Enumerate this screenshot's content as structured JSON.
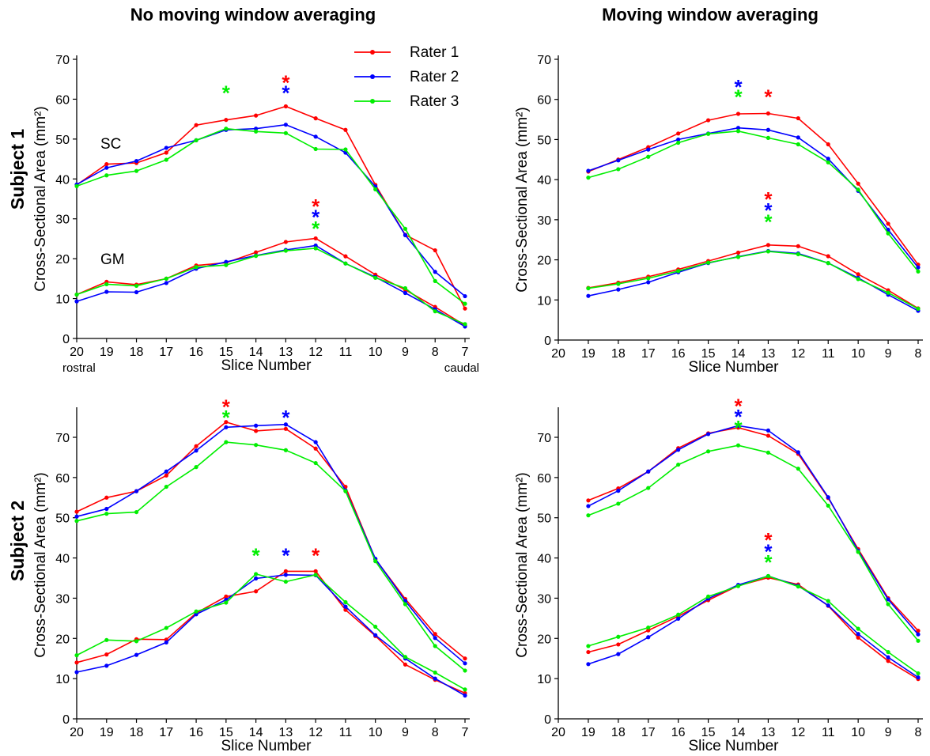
{
  "column_titles": [
    "No moving window averaging",
    "Moving window averaging"
  ],
  "row_titles": [
    "Subject 1",
    "Subject 2"
  ],
  "colors": {
    "Rater 1": "#ff0000",
    "Rater 2": "#0000ff",
    "Rater 3": "#00ee00"
  },
  "legend": [
    "Rater 1",
    "Rater 2",
    "Rater 3"
  ],
  "chart_data": [
    {
      "type": "line",
      "panel": "subject1-no-averaging",
      "xlabel": "Slice Number",
      "ylabel": "Cross-Sectional Area (mm²)",
      "xticks": [
        20,
        19,
        18,
        17,
        16,
        15,
        14,
        13,
        12,
        11,
        10,
        9,
        8,
        7
      ],
      "xlim": [
        20,
        7
      ],
      "ylim": [
        0,
        70
      ],
      "yticks": [
        0,
        10,
        20,
        30,
        40,
        50,
        60,
        70
      ],
      "xtick_notes": {
        "left": "rostral",
        "right": "caudal"
      },
      "legend_position": "top-center",
      "x": [
        20,
        19,
        18,
        17,
        16,
        15,
        14,
        13,
        12,
        11,
        10,
        9,
        8,
        7
      ],
      "groups": [
        {
          "label": "SC",
          "series": [
            {
              "name": "Rater 1",
              "values": [
                38.5,
                43.7,
                44.0,
                46.6,
                53.5,
                54.8,
                55.9,
                58.2,
                55.2,
                52.3,
                38.5,
                26.0,
                22.1,
                7.5
              ]
            },
            {
              "name": "Rater 2",
              "values": [
                38.6,
                42.8,
                44.5,
                47.8,
                49.7,
                52.3,
                52.6,
                53.6,
                50.6,
                46.6,
                38.1,
                25.9,
                16.7,
                10.6
              ]
            },
            {
              "name": "Rater 3",
              "values": [
                38.2,
                40.9,
                42.0,
                44.8,
                49.7,
                52.6,
                51.9,
                51.5,
                47.5,
                47.4,
                37.4,
                27.5,
                14.4,
                8.7
              ]
            }
          ]
        },
        {
          "label": "GM",
          "series": [
            {
              "name": "Rater 1",
              "values": [
                11.0,
                14.2,
                13.5,
                15.0,
                18.3,
                19.0,
                21.6,
                24.2,
                25.1,
                20.6,
                16.0,
                12.2,
                7.9,
                3.3
              ]
            },
            {
              "name": "Rater 2",
              "values": [
                9.3,
                11.7,
                11.6,
                13.9,
                17.5,
                19.2,
                20.8,
                22.2,
                23.3,
                18.8,
                15.4,
                11.4,
                7.3,
                3.0
              ]
            },
            {
              "name": "Rater 3",
              "values": [
                11.0,
                13.6,
                13.2,
                15.0,
                17.9,
                18.4,
                20.7,
                22.0,
                22.6,
                18.8,
                15.2,
                12.6,
                6.8,
                3.6
              ]
            }
          ]
        }
      ],
      "annotations": [
        {
          "text": "*",
          "x": 13,
          "y": 64.5,
          "color": "Rater 1"
        },
        {
          "text": "*",
          "x": 13,
          "y": 62.0,
          "color": "Rater 2"
        },
        {
          "text": "*",
          "x": 15,
          "y": 62.0,
          "color": "Rater 3"
        },
        {
          "text": "*",
          "x": 12,
          "y": 33.5,
          "color": "Rater 1"
        },
        {
          "text": "*",
          "x": 12,
          "y": 30.8,
          "color": "Rater 2"
        },
        {
          "text": "*",
          "x": 12,
          "y": 28.0,
          "color": "Rater 3"
        }
      ]
    },
    {
      "type": "line",
      "panel": "subject1-moving-averaging",
      "xlabel": "Slice Number",
      "ylabel": "Cross-Sectional Area (mm²)",
      "xticks": [
        20,
        19,
        18,
        17,
        16,
        15,
        14,
        13,
        12,
        11,
        10,
        9,
        8
      ],
      "xlim": [
        20,
        8
      ],
      "ylim": [
        0,
        70
      ],
      "yticks": [
        0,
        10,
        20,
        30,
        40,
        50,
        60,
        70
      ],
      "x": [
        19,
        18,
        17,
        16,
        15,
        14,
        13,
        12,
        11,
        10,
        9,
        8
      ],
      "groups": [
        {
          "label": "",
          "series": [
            {
              "name": "Rater 1",
              "values": [
                42.0,
                45.0,
                48.1,
                51.5,
                54.8,
                56.4,
                56.5,
                55.3,
                48.8,
                39.0,
                29.0,
                18.8
              ]
            },
            {
              "name": "Rater 2",
              "values": [
                42.2,
                44.8,
                47.5,
                50.0,
                51.5,
                52.9,
                52.4,
                50.5,
                45.2,
                37.2,
                27.5,
                18.1
              ]
            },
            {
              "name": "Rater 3",
              "values": [
                40.5,
                42.6,
                45.7,
                49.2,
                51.4,
                52.1,
                50.4,
                48.8,
                44.3,
                37.5,
                26.6,
                17.1
              ]
            }
          ]
        },
        {
          "label": "",
          "series": [
            {
              "name": "Rater 1",
              "values": [
                13.0,
                14.3,
                15.8,
                17.6,
                19.7,
                21.8,
                23.7,
                23.4,
                20.9,
                16.4,
                12.4,
                7.9
              ]
            },
            {
              "name": "Rater 2",
              "values": [
                11.0,
                12.6,
                14.4,
                16.9,
                19.2,
                20.8,
                22.2,
                21.6,
                19.2,
                15.5,
                11.3,
                7.3
              ]
            },
            {
              "name": "Rater 3",
              "values": [
                12.9,
                14.0,
                15.4,
                17.2,
                19.3,
                20.7,
                22.1,
                21.4,
                19.2,
                15.2,
                11.8,
                7.8
              ]
            }
          ]
        }
      ],
      "annotations": [
        {
          "text": "*",
          "x": 14,
          "y": 63.5,
          "color": "Rater 2"
        },
        {
          "text": "*",
          "x": 14,
          "y": 61.0,
          "color": "Rater 3"
        },
        {
          "text": "*",
          "x": 13,
          "y": 61.0,
          "color": "Rater 1"
        },
        {
          "text": "*",
          "x": 13,
          "y": 35.5,
          "color": "Rater 1"
        },
        {
          "text": "*",
          "x": 13,
          "y": 32.7,
          "color": "Rater 2"
        },
        {
          "text": "*",
          "x": 13,
          "y": 29.9,
          "color": "Rater 3"
        }
      ]
    },
    {
      "type": "line",
      "panel": "subject2-no-averaging",
      "xlabel": "Slice Number",
      "ylabel": "Cross-Sectional Area (mm²)",
      "xticks": [
        20,
        19,
        18,
        17,
        16,
        15,
        14,
        13,
        12,
        11,
        10,
        9,
        8,
        7
      ],
      "xlim": [
        20,
        7
      ],
      "ylim": [
        0,
        75
      ],
      "yticks": [
        0,
        10,
        20,
        30,
        40,
        50,
        60,
        70
      ],
      "x": [
        20,
        19,
        18,
        17,
        16,
        15,
        14,
        13,
        12,
        11,
        10,
        9,
        8,
        7
      ],
      "groups": [
        {
          "label": "",
          "series": [
            {
              "name": "Rater 1",
              "values": [
                51.5,
                55.0,
                56.6,
                60.5,
                67.8,
                73.8,
                71.6,
                72.1,
                67.2,
                57.7,
                39.7,
                29.8,
                21.1,
                15.0
              ]
            },
            {
              "name": "Rater 2",
              "values": [
                50.3,
                52.2,
                56.6,
                61.5,
                66.7,
                72.5,
                72.9,
                73.2,
                68.8,
                56.8,
                39.8,
                29.3,
                20.1,
                13.8
              ]
            },
            {
              "name": "Rater 3",
              "values": [
                49.2,
                51.0,
                51.4,
                57.7,
                62.6,
                68.8,
                68.1,
                66.8,
                63.6,
                56.6,
                39.2,
                28.5,
                18.1,
                12.0
              ]
            }
          ]
        },
        {
          "label": "",
          "series": [
            {
              "name": "Rater 1",
              "values": [
                14.0,
                16.0,
                19.8,
                19.7,
                26.3,
                30.4,
                31.7,
                36.7,
                36.7,
                27.1,
                20.6,
                13.5,
                9.7,
                6.4
              ]
            },
            {
              "name": "Rater 2",
              "values": [
                11.6,
                13.2,
                15.9,
                19.0,
                26.0,
                29.6,
                34.9,
                35.8,
                35.7,
                27.9,
                20.8,
                15.0,
                10.0,
                5.8
              ]
            },
            {
              "name": "Rater 3",
              "values": [
                15.8,
                19.6,
                19.3,
                22.6,
                26.7,
                28.9,
                36.0,
                34.1,
                35.8,
                29.0,
                22.9,
                15.4,
                11.5,
                7.3
              ]
            }
          ]
        }
      ],
      "annotations": [
        {
          "text": "*",
          "x": 15,
          "y": 78.0,
          "color": "Rater 1"
        },
        {
          "text": "*",
          "x": 15,
          "y": 75.3,
          "color": "Rater 3"
        },
        {
          "text": "*",
          "x": 13,
          "y": 75.3,
          "color": "Rater 2"
        },
        {
          "text": "*",
          "x": 14,
          "y": 41.0,
          "color": "Rater 3"
        },
        {
          "text": "*",
          "x": 13,
          "y": 41.0,
          "color": "Rater 2"
        },
        {
          "text": "*",
          "x": 12,
          "y": 41.0,
          "color": "Rater 1"
        }
      ]
    },
    {
      "type": "line",
      "panel": "subject2-moving-averaging",
      "xlabel": "Slice Number",
      "ylabel": "Cross-Sectional Area (mm²)",
      "xticks": [
        20,
        19,
        18,
        17,
        16,
        15,
        14,
        13,
        12,
        11,
        10,
        9,
        8
      ],
      "xlim": [
        20,
        8
      ],
      "ylim": [
        0,
        75
      ],
      "yticks": [
        0,
        10,
        20,
        30,
        40,
        50,
        60,
        70
      ],
      "x": [
        19,
        18,
        17,
        16,
        15,
        14,
        13,
        12,
        11,
        10,
        9,
        8
      ],
      "groups": [
        {
          "label": "",
          "series": [
            {
              "name": "Rater 1",
              "values": [
                54.3,
                57.3,
                61.5,
                67.3,
                71.0,
                72.4,
                70.4,
                65.9,
                54.9,
                42.2,
                30.0,
                21.9
              ]
            },
            {
              "name": "Rater 2",
              "values": [
                52.9,
                56.7,
                61.5,
                66.9,
                70.8,
                72.9,
                71.7,
                66.3,
                55.1,
                41.8,
                29.7,
                21.0
              ]
            },
            {
              "name": "Rater 3",
              "values": [
                50.6,
                53.5,
                57.4,
                63.2,
                66.5,
                68.0,
                66.2,
                62.2,
                53.0,
                41.5,
                28.5,
                19.4
              ]
            }
          ]
        },
        {
          "label": "",
          "series": [
            {
              "name": "Rater 1",
              "values": [
                16.6,
                18.5,
                22.0,
                25.5,
                29.5,
                33.1,
                35.1,
                33.4,
                28.1,
                20.2,
                14.4,
                9.9
              ]
            },
            {
              "name": "Rater 2",
              "values": [
                13.6,
                16.1,
                20.3,
                24.9,
                29.9,
                33.3,
                35.5,
                33.1,
                28.2,
                21.1,
                15.3,
                10.3
              ]
            },
            {
              "name": "Rater 3",
              "values": [
                18.1,
                20.4,
                22.7,
                25.9,
                30.4,
                33.0,
                35.5,
                32.9,
                29.3,
                22.4,
                16.6,
                11.3
              ]
            }
          ]
        }
      ],
      "annotations": [
        {
          "text": "*",
          "x": 14,
          "y": 78.2,
          "color": "Rater 1"
        },
        {
          "text": "*",
          "x": 14,
          "y": 75.5,
          "color": "Rater 2"
        },
        {
          "text": "*",
          "x": 14,
          "y": 72.8,
          "color": "Rater 3"
        },
        {
          "text": "*",
          "x": 13,
          "y": 44.8,
          "color": "Rater 1"
        },
        {
          "text": "*",
          "x": 13,
          "y": 42.0,
          "color": "Rater 2"
        },
        {
          "text": "*",
          "x": 13,
          "y": 39.3,
          "color": "Rater 3"
        }
      ]
    }
  ]
}
